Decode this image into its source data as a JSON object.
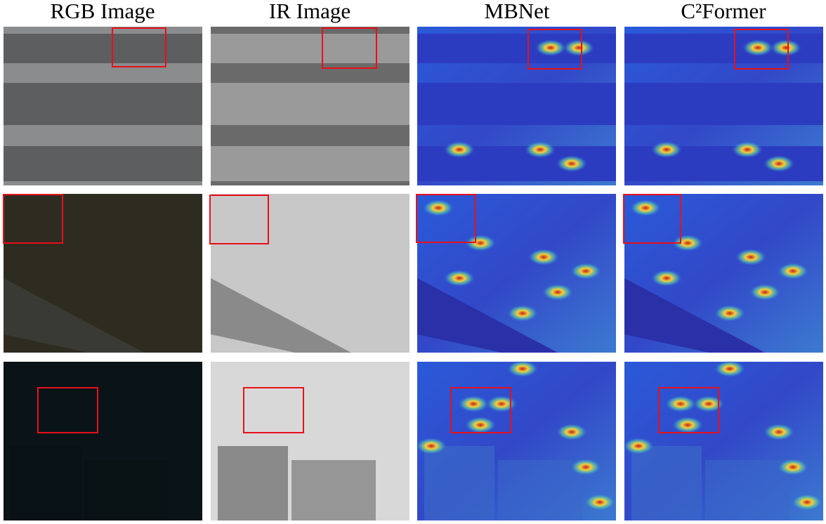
{
  "header": {
    "columns": [
      "RGB Image",
      "IR Image",
      "MBNet",
      "C²Former"
    ]
  }
}
